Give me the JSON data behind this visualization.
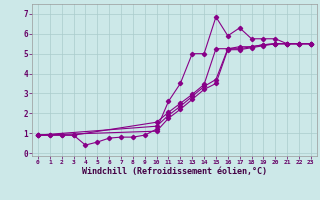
{
  "xlabel": "Windchill (Refroidissement éolien,°C)",
  "bg_color": "#cce8e8",
  "line_color": "#880088",
  "grid_color": "#aacccc",
  "xlim": [
    -0.5,
    23.5
  ],
  "ylim": [
    -0.15,
    7.5
  ],
  "xticks": [
    0,
    1,
    2,
    3,
    4,
    5,
    6,
    7,
    8,
    9,
    10,
    11,
    12,
    13,
    14,
    15,
    16,
    17,
    18,
    19,
    20,
    21,
    22,
    23
  ],
  "yticks": [
    0,
    1,
    2,
    3,
    4,
    5,
    6,
    7
  ],
  "series1_x": [
    0,
    1,
    2,
    3,
    4,
    5,
    6,
    7,
    8,
    9,
    10,
    11,
    12,
    13,
    14,
    15,
    16,
    17,
    18,
    19,
    20,
    21,
    22,
    23
  ],
  "series1_y": [
    0.9,
    0.9,
    0.9,
    0.9,
    0.4,
    0.55,
    0.75,
    0.8,
    0.8,
    0.9,
    1.2,
    2.6,
    3.5,
    5.0,
    5.0,
    6.85,
    5.9,
    6.3,
    5.75,
    5.75,
    5.75,
    5.5,
    5.5,
    5.5
  ],
  "series2_x": [
    0,
    1,
    2,
    3,
    10,
    11,
    12,
    13,
    14,
    15,
    16,
    17,
    18,
    19,
    20,
    21,
    22,
    23
  ],
  "series2_y": [
    0.9,
    0.9,
    0.9,
    0.9,
    1.55,
    2.05,
    2.5,
    2.95,
    3.45,
    5.25,
    5.25,
    5.35,
    5.35,
    5.45,
    5.5,
    5.5,
    5.5,
    5.5
  ],
  "series3_x": [
    0,
    10,
    11,
    12,
    13,
    14,
    15,
    16,
    17,
    18,
    19,
    20,
    21,
    22,
    23
  ],
  "series3_y": [
    0.9,
    1.35,
    1.9,
    2.35,
    2.85,
    3.35,
    3.7,
    5.25,
    5.25,
    5.35,
    5.45,
    5.5,
    5.5,
    5.5,
    5.5
  ],
  "series4_x": [
    0,
    10,
    11,
    12,
    13,
    14,
    15,
    16,
    17,
    18,
    19,
    20,
    21,
    22,
    23
  ],
  "series4_y": [
    0.9,
    1.1,
    1.75,
    2.2,
    2.7,
    3.2,
    3.5,
    5.2,
    5.2,
    5.3,
    5.4,
    5.5,
    5.5,
    5.5,
    5.5
  ]
}
